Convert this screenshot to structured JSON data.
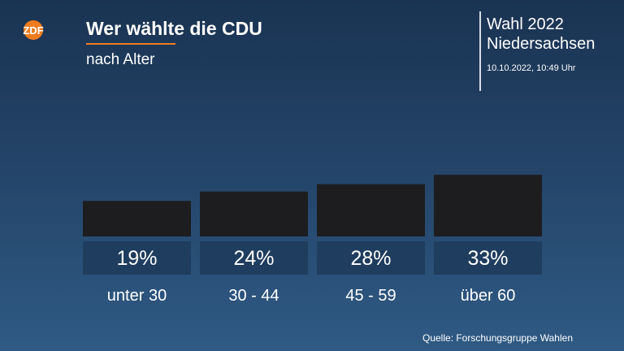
{
  "header": {
    "logo_text": "ZDF",
    "title": "Wer wählte die CDU",
    "subtitle": "nach Alter",
    "election_line1": "Wahl 2022",
    "election_line2": "Niedersachsen",
    "timestamp": "10.10.2022, 10:49 Uhr"
  },
  "footer": {
    "source": "Quelle: Forschungsgruppe Wahlen"
  },
  "colors": {
    "accent": "#f07c1e",
    "bar": "#1d1d1f",
    "label_box": "#1f3d5e"
  },
  "chart_data": {
    "type": "bar",
    "title": "Wer wählte die CDU",
    "subtitle": "nach Alter",
    "categories": [
      "unter 30",
      "30 - 44",
      "45 - 59",
      "über 60"
    ],
    "values": [
      19,
      24,
      28,
      33
    ],
    "value_labels": [
      "19%",
      "24%",
      "28%",
      "33%"
    ],
    "unit": "%",
    "grid": false
  }
}
